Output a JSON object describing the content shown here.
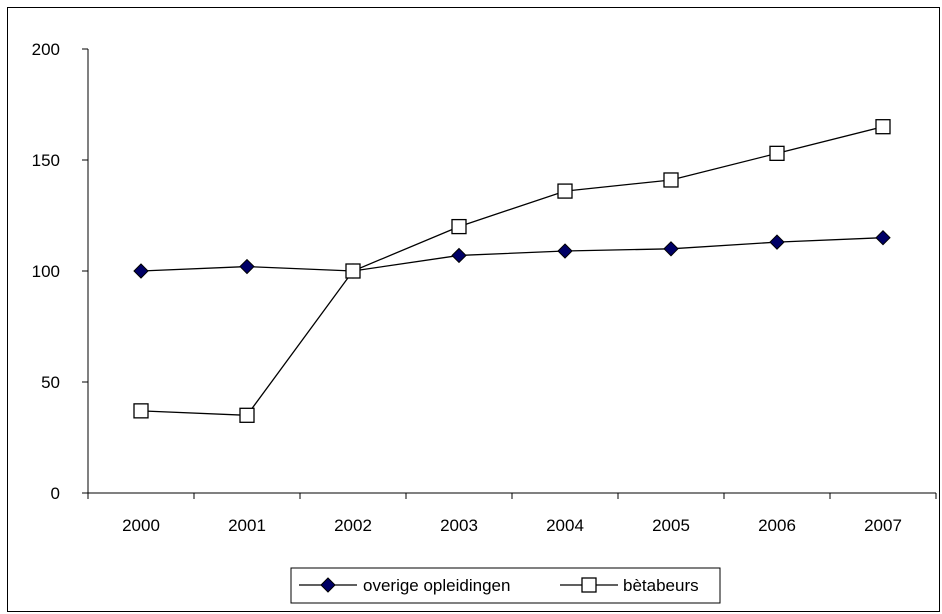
{
  "chart_data": {
    "type": "line",
    "categories": [
      "2000",
      "2001",
      "2002",
      "2003",
      "2004",
      "2005",
      "2006",
      "2007"
    ],
    "series": [
      {
        "name": "overige opleidingen",
        "values": [
          100,
          102,
          100,
          107,
          109,
          110,
          113,
          115
        ],
        "color": "#000066",
        "marker": "diamond"
      },
      {
        "name": "bètabeurs",
        "values": [
          37,
          35,
          100,
          120,
          136,
          141,
          153,
          165
        ],
        "color": "#ffffff",
        "marker": "square"
      }
    ],
    "yticks": [
      0,
      50,
      100,
      150,
      200
    ],
    "ylim": [
      0,
      200
    ],
    "grid": false,
    "legend_position": "bottom"
  }
}
